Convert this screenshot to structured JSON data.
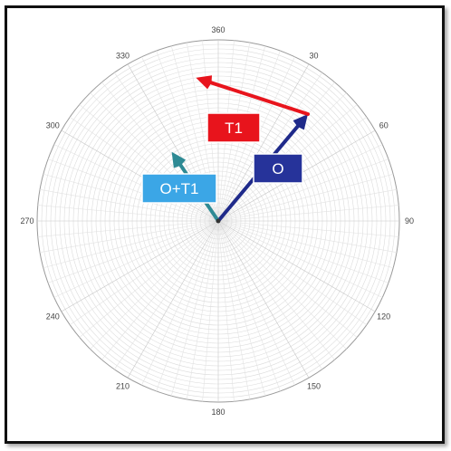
{
  "chart_data": {
    "type": "polar-vector",
    "title": "",
    "angle_ticks": [
      "360",
      "30",
      "60",
      "90",
      "120",
      "150",
      "180",
      "210",
      "240",
      "270",
      "300",
      "330"
    ],
    "grid": true,
    "vectors": [
      {
        "label": "O",
        "angle_deg": 40,
        "magnitude": 0.77,
        "color": "#1f2a8a",
        "label_bg": "#26339a"
      },
      {
        "label": "T1",
        "angle_deg": 288,
        "magnitude": 0.65,
        "color": "#e8141c",
        "label_bg": "#e8141c"
      },
      {
        "label": "O+T1",
        "angle_deg": 326,
        "magnitude": 0.46,
        "color": "#2e8a94",
        "label_bg": "#3ba6e6"
      }
    ]
  }
}
